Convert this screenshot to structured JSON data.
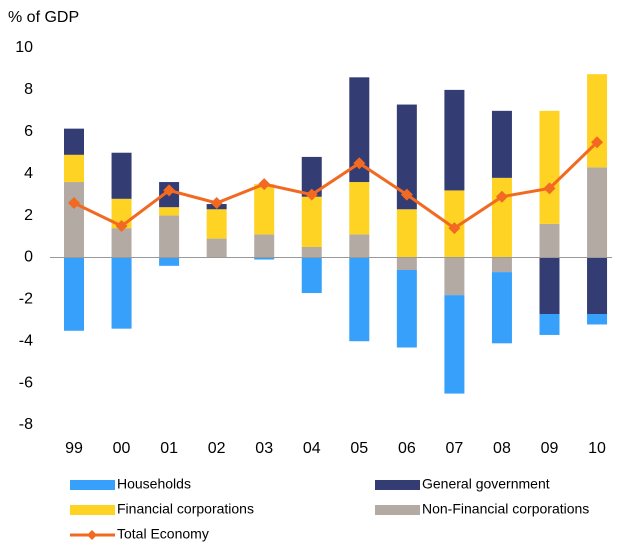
{
  "chart_data": {
    "type": "stacked-bar-line",
    "y_label": "% of GDP",
    "categories": [
      "99",
      "00",
      "01",
      "02",
      "03",
      "04",
      "05",
      "06",
      "07",
      "08",
      "09",
      "10"
    ],
    "series": [
      {
        "name": "Households",
        "color": "#36a0fb",
        "values": [
          -3.5,
          -3.4,
          -0.4,
          0,
          -0.1,
          -1.7,
          -4.0,
          -3.7,
          -4.7,
          -3.4,
          -1.0,
          -0.5
        ]
      },
      {
        "name": "General government",
        "color": "#333c73",
        "values": [
          1.25,
          2.2,
          1.2,
          0.25,
          0,
          1.9,
          5.0,
          5.0,
          4.8,
          3.2,
          -2.7,
          -2.7
        ]
      },
      {
        "name": "Financial corporations",
        "color": "#ffd324",
        "values": [
          1.3,
          1.4,
          0.4,
          1.4,
          2.4,
          2.4,
          2.5,
          2.3,
          3.2,
          3.8,
          5.4,
          4.45
        ]
      },
      {
        "name": "Non-Financial corporations",
        "color": "#b3aba3",
        "values": [
          3.6,
          1.4,
          2.0,
          0.9,
          1.1,
          0.5,
          1.1,
          -0.6,
          -1.8,
          -0.7,
          1.6,
          4.3
        ]
      },
      {
        "name": "Total Economy",
        "color": "#f26a21",
        "type": "line",
        "values": [
          2.6,
          1.5,
          3.2,
          2.6,
          3.5,
          3.0,
          4.5,
          3.0,
          1.4,
          2.9,
          3.3,
          5.5
        ]
      }
    ],
    "ylim": [
      -8,
      10
    ],
    "yticks": [
      -8,
      -6,
      -4,
      -2,
      0,
      2,
      4,
      6,
      8,
      10
    ]
  }
}
